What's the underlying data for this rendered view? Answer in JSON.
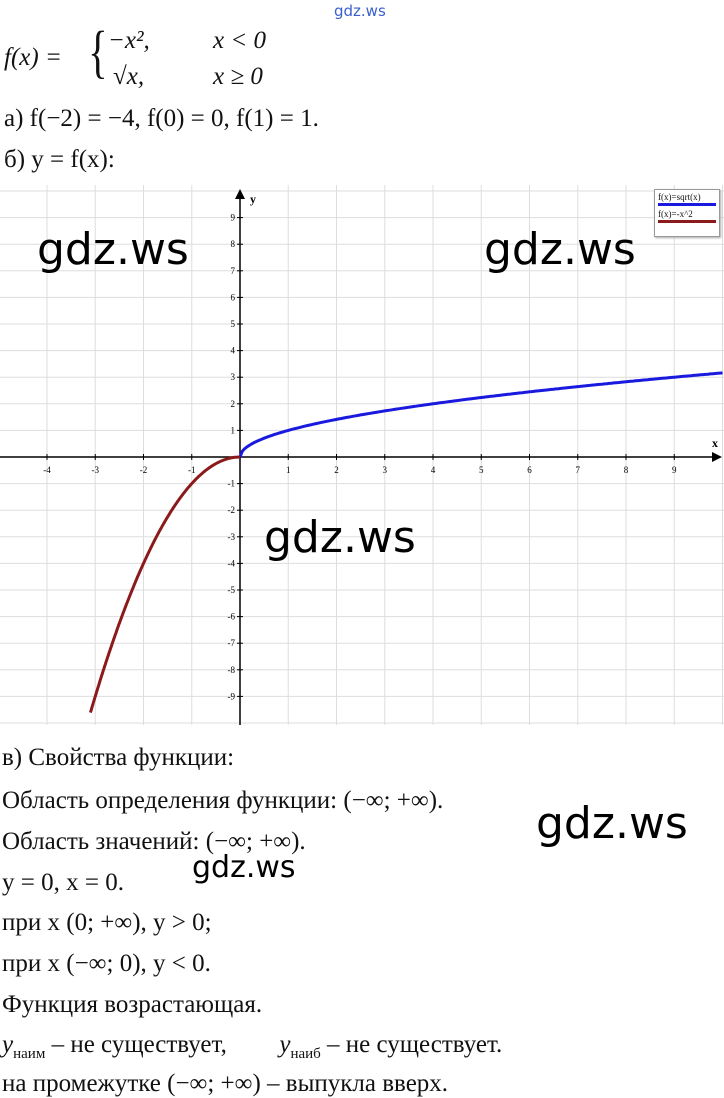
{
  "watermark": "gdz.ws",
  "definition": {
    "lhs": "f(x) =",
    "case1_expr": "−x²,",
    "case1_cond": "x < 0",
    "case2_expr": "√x,",
    "case2_cond": "x ≥ 0"
  },
  "part_a": "а) f(−2) = −4,        f(0) = 0,        f(1) = 1.",
  "part_b": "б) y = f(x):",
  "chart_data": {
    "type": "line",
    "xlabel": "x",
    "ylabel": "y",
    "xlim": [
      -5,
      10
    ],
    "ylim": [
      -10,
      10
    ],
    "xticks": [
      -4,
      -3,
      -2,
      -1,
      1,
      2,
      3,
      4,
      5,
      6,
      7,
      8,
      9
    ],
    "yticks": [
      -9,
      -8,
      -7,
      -6,
      -5,
      -4,
      -3,
      -2,
      -1,
      1,
      2,
      3,
      4,
      5,
      6,
      7,
      8,
      9
    ],
    "grid": true,
    "legend": "top-right",
    "series": [
      {
        "name": "f(x)=sqrt(x)",
        "color": "#1a1adf",
        "domain": [
          0,
          10
        ],
        "formula": "sqrt(x)"
      },
      {
        "name": "f(x)=-x^2",
        "color": "#8b1a1a",
        "domain": [
          -3.1,
          0
        ],
        "formula": "-x^2"
      }
    ]
  },
  "properties": {
    "title": "в) Свойства функции:",
    "domain": "Область определения функции: (−∞; +∞).",
    "range": "Область значений: (−∞; +∞).",
    "zeros": "y = 0,       x = 0.",
    "positive": "при x (0; +∞),        y > 0;",
    "negative": "при x (−∞; 0),        y < 0.",
    "monotonic": "Функция возрастающая.",
    "ymin_sym": "y",
    "ymin_sub": "наим",
    "ymin_text": " – не существует,",
    "ymax_sym": "y",
    "ymax_sub": "наиб",
    "ymax_text": " – не существует.",
    "convexity": "на промежутке (−∞; +∞) – выпукла вверх."
  }
}
